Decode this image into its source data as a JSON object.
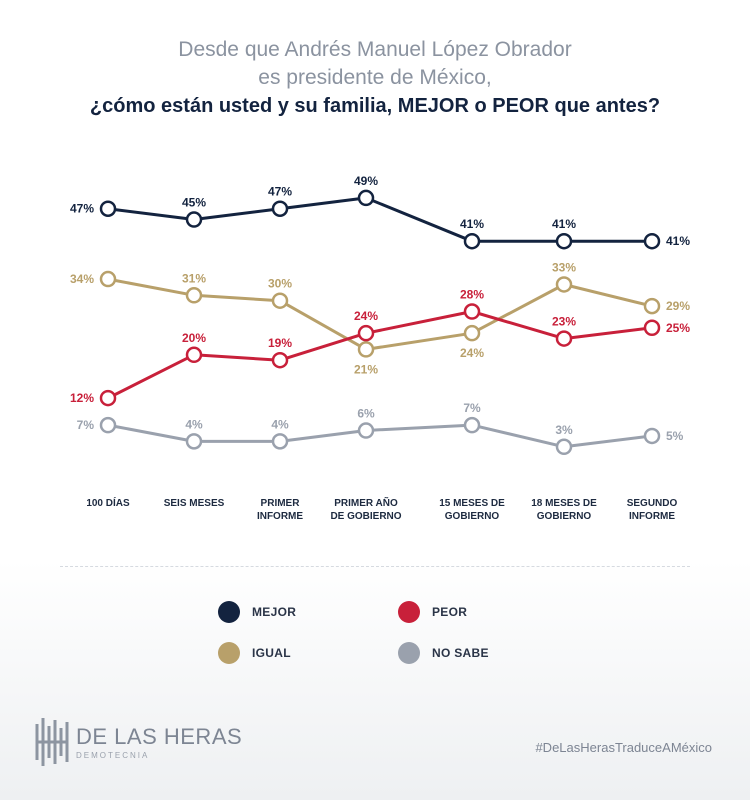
{
  "title": {
    "line1": "Desde que Andrés Manuel López Obrador",
    "line2": "es presidente de México,",
    "line3": "¿cómo están usted y su familia, MEJOR o PEOR que antes?"
  },
  "chart_data": {
    "type": "line",
    "categories": [
      [
        "100 DÍAS"
      ],
      [
        "SEIS MESES"
      ],
      [
        "PRIMER",
        "INFORME"
      ],
      [
        "PRIMER AÑO",
        "DE GOBIERNO"
      ],
      [
        "15 MESES DE",
        "GOBIERNO"
      ],
      [
        "18 MESES DE",
        "GOBIERNO"
      ],
      [
        "SEGUNDO",
        "INFORME"
      ]
    ],
    "series": [
      {
        "name": "MEJOR",
        "color": "#13233f",
        "values": [
          47,
          45,
          47,
          49,
          41,
          41,
          41
        ],
        "labels": [
          "47%",
          "45%",
          "47%",
          "49%",
          "41%",
          "41%",
          "41%"
        ]
      },
      {
        "name": "IGUAL",
        "color": "#b8a06a",
        "values": [
          34,
          31,
          30,
          21,
          24,
          33,
          29
        ],
        "labels": [
          "34%",
          "31%",
          "30%",
          "21%",
          "24%",
          "33%",
          "29%"
        ]
      },
      {
        "name": "PEOR",
        "color": "#c8203a",
        "values": [
          12,
          20,
          19,
          24,
          28,
          23,
          25
        ],
        "labels": [
          "12%",
          "20%",
          "19%",
          "24%",
          "28%",
          "23%",
          "25%"
        ]
      },
      {
        "name": "NO SABE",
        "color": "#9aa1ad",
        "values": [
          7,
          4,
          4,
          6,
          7,
          3,
          5
        ],
        "labels": [
          "7%",
          "4%",
          "4%",
          "6%",
          "7%",
          "3%",
          "5%"
        ]
      }
    ],
    "grid": false,
    "legend": "bottom"
  },
  "legend": {
    "items": [
      {
        "label": "MEJOR",
        "color": "#13233f"
      },
      {
        "label": "PEOR",
        "color": "#c8203a"
      },
      {
        "label": "IGUAL",
        "color": "#b8a06a"
      },
      {
        "label": "NO SABE",
        "color": "#9aa1ad"
      }
    ]
  },
  "footer": {
    "logo_name": "DE LAS HERAS",
    "logo_sub": "DEMOTECNIA",
    "hashtag": "#DeLasHerasTraduceAMéxico"
  }
}
